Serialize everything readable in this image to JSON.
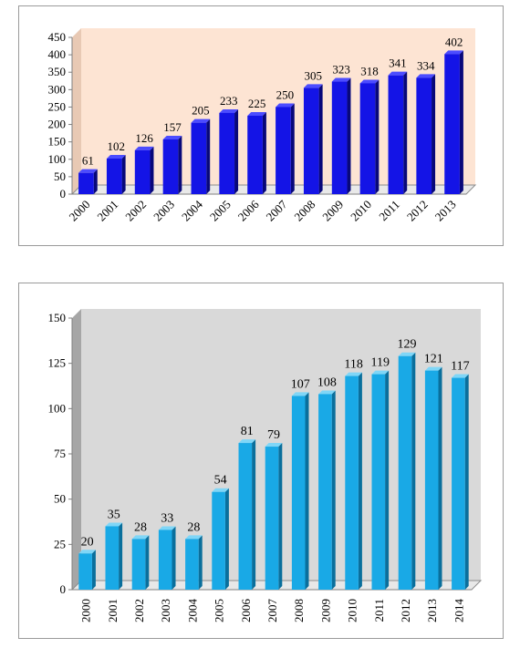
{
  "chart_data": [
    {
      "type": "bar",
      "categories": [
        "2000",
        "2001",
        "2002",
        "2003",
        "2004",
        "2005",
        "2006",
        "2007",
        "2008",
        "2009",
        "2010",
        "2011",
        "2012",
        "2013"
      ],
      "values": [
        61,
        102,
        126,
        157,
        205,
        233,
        225,
        250,
        305,
        323,
        318,
        341,
        334,
        402
      ],
      "ylim": [
        0,
        450
      ],
      "yticks": [
        0,
        50,
        100,
        150,
        200,
        250,
        300,
        350,
        400,
        450
      ],
      "grid": false,
      "colors": {
        "bar": "#1414e6",
        "bar_side": "#08087a",
        "bar_top": "#4c4cff",
        "plot_bg": "#fde4d3"
      }
    },
    {
      "type": "bar",
      "categories": [
        "2000",
        "2001",
        "2002",
        "2003",
        "2004",
        "2005",
        "2006",
        "2007",
        "2008",
        "2009",
        "2010",
        "2011",
        "2012",
        "2013",
        "2014"
      ],
      "values": [
        20,
        35,
        28,
        33,
        28,
        54,
        81,
        79,
        107,
        108,
        118,
        119,
        129,
        121,
        117
      ],
      "ylim": [
        0,
        150
      ],
      "yticks": [
        0,
        25,
        50,
        75,
        100,
        125,
        150
      ],
      "grid": false,
      "colors": {
        "bar": "#19a9e6",
        "bar_side": "#0a6f9c",
        "bar_top": "#7fd6f7",
        "plot_bg": "#d9d9d9"
      }
    }
  ]
}
